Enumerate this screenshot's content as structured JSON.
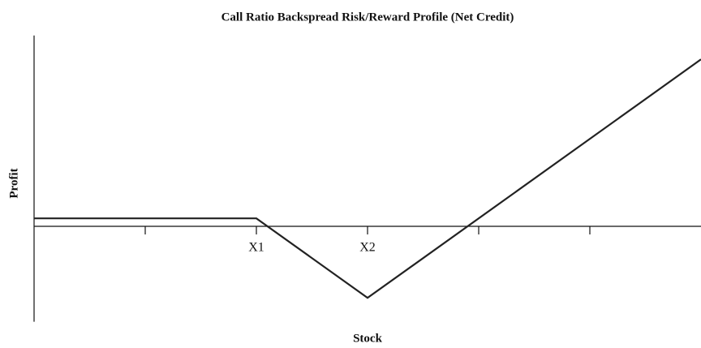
{
  "chart_data": {
    "type": "line",
    "title": "Call Ratio Backspread Risk/Reward Profile (Net Credit)",
    "xlabel": "Stock",
    "ylabel": "Profit",
    "x": [
      0,
      2,
      3,
      6
    ],
    "values": [
      0.1,
      0.1,
      -0.9,
      2.1
    ],
    "color": "#222222",
    "xlim": [
      0,
      6
    ],
    "ylim": [
      -1.2,
      2.4
    ],
    "xticks": [
      {
        "value": 1,
        "label": null
      },
      {
        "value": 2,
        "label": "X1"
      },
      {
        "value": 3,
        "label": "X2"
      },
      {
        "value": 4,
        "label": null
      },
      {
        "value": 5,
        "label": null
      }
    ],
    "grid": false
  }
}
